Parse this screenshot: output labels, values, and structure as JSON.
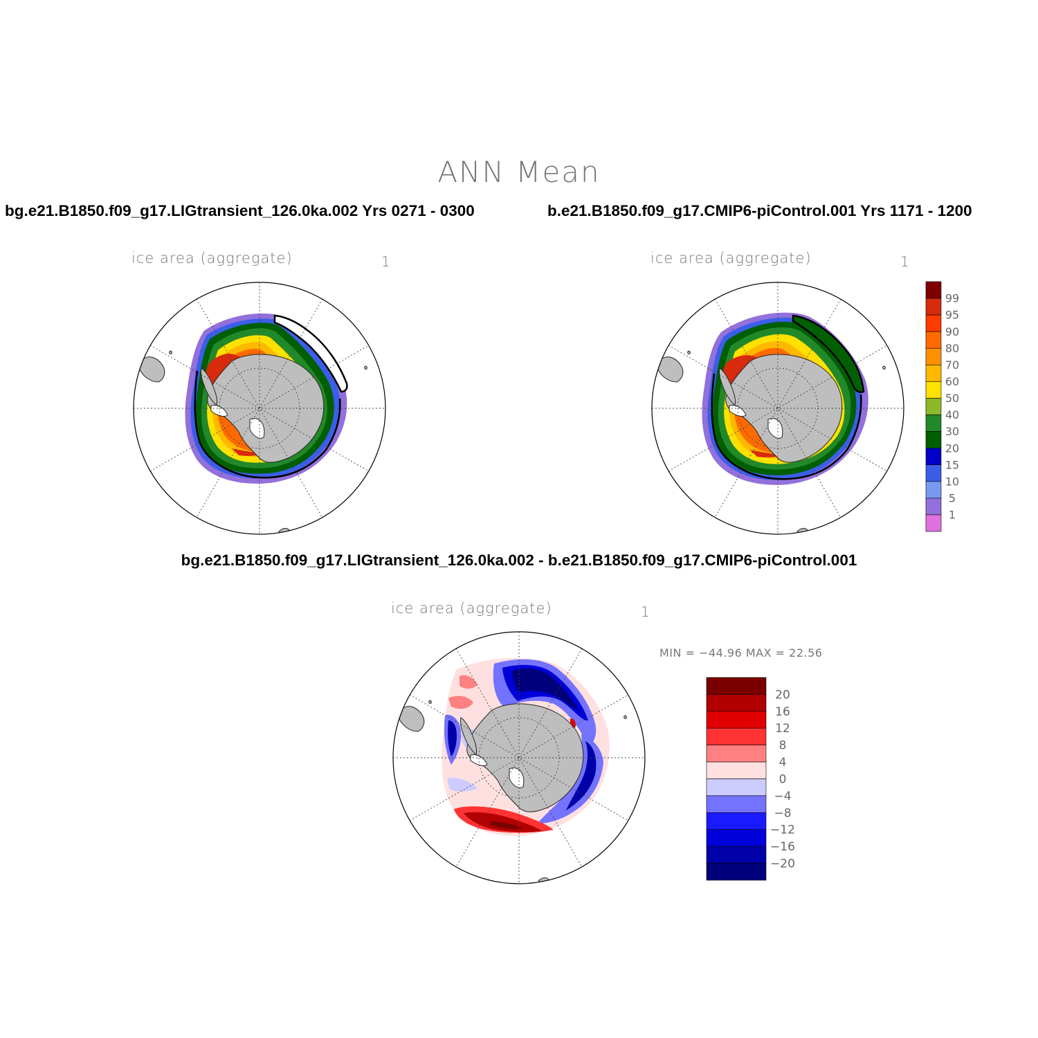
{
  "title": "ANN Mean",
  "panels": [
    {
      "case": "bg.e21.B1850.f09_g17.LIGtransient_126.0ka.002  Yrs 0271 - 0300",
      "variable": "ice area   (aggregate)",
      "units": "1"
    },
    {
      "case": "b.e21.B1850.f09_g17.CMIP6-piControl.001  Yrs 1171 - 1200",
      "variable": "ice area   (aggregate)",
      "units": "1"
    }
  ],
  "diff_panel": {
    "case": "bg.e21.B1850.f09_g17.LIGtransient_126.0ka.002 - b.e21.B1850.f09_g17.CMIP6-piControl.001",
    "variable": "ice area   (aggregate)",
    "units": "1",
    "minmax": "MIN = −44.96 MAX =  22.56"
  },
  "abs_colorbar": {
    "labels": [
      "99",
      "95",
      "90",
      "80",
      "70",
      "60",
      "50",
      "40",
      "30",
      "20",
      "15",
      "10",
      "5",
      "1"
    ],
    "colors": [
      "#7f0000",
      "#d82a0d",
      "#ff3b00",
      "#ff6a00",
      "#ff9100",
      "#ffb800",
      "#ffe100",
      "#8db82a",
      "#22892a",
      "#005f00",
      "#0000c8",
      "#3b5ee8",
      "#7799f0",
      "#9370db",
      "#e070e0"
    ]
  },
  "diff_colorbar": {
    "labels": [
      "20",
      "16",
      "12",
      "8",
      "4",
      "0",
      "−4",
      "−8",
      "−12",
      "−16",
      "−20"
    ],
    "colors": [
      "#7a0000",
      "#b20000",
      "#e00000",
      "#ff3333",
      "#ff8080",
      "#ffe0e0",
      "#ccccff",
      "#7373ff",
      "#1a1aff",
      "#0000d8",
      "#0000a8",
      "#00007a"
    ]
  },
  "map_colors": {
    "land": "#bebebe",
    "ocean": "#ffffff",
    "grid": "#444444"
  }
}
